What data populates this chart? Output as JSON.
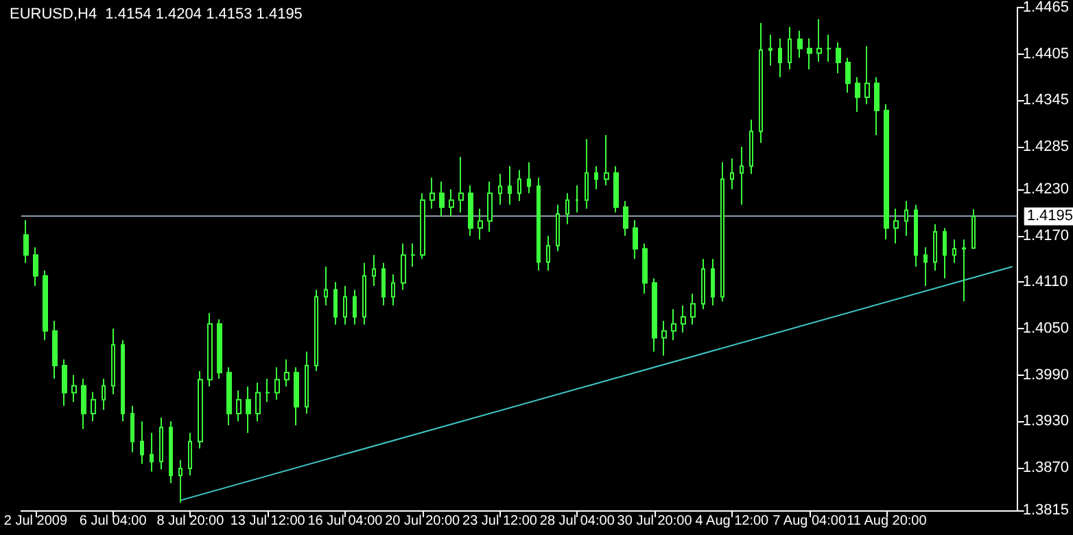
{
  "chart_data": {
    "type": "candlestick",
    "title": "EURUSD,H4  1.4154 1.4204 1.4153 1.4195",
    "color": "#3cff3c",
    "categories": [
      null,
      "2 Jul 2009",
      null,
      null,
      null,
      null,
      null,
      null,
      null,
      "6 Jul 04:00",
      null,
      null,
      null,
      null,
      null,
      null,
      null,
      "8 Jul 20:00",
      null,
      null,
      null,
      null,
      null,
      null,
      null,
      "13 Jul 12:00",
      null,
      null,
      null,
      null,
      null,
      null,
      null,
      "16 Jul 04:00",
      null,
      null,
      null,
      null,
      null,
      null,
      null,
      "20 Jul 20:00",
      null,
      null,
      null,
      null,
      null,
      null,
      null,
      "23 Jul 12:00",
      null,
      null,
      null,
      null,
      null,
      null,
      null,
      "28 Jul 04:00",
      null,
      null,
      null,
      null,
      null,
      null,
      null,
      "30 Jul 20:00",
      null,
      null,
      null,
      null,
      null,
      null,
      null,
      "4 Aug 12:00",
      null,
      null,
      null,
      null,
      null,
      null,
      null,
      "7 Aug 04:00",
      null,
      null,
      null,
      null,
      null,
      null,
      null,
      "11 Aug 20:00",
      null,
      null,
      null,
      null,
      null,
      null,
      null,
      null,
      null,
      null,
      null,
      null,
      null
    ],
    "ohlc": [
      [
        1.4171,
        1.419,
        1.4135,
        1.4145
      ],
      [
        1.4145,
        1.4155,
        1.4105,
        1.4118
      ],
      [
        1.4118,
        1.4125,
        1.4035,
        1.4047
      ],
      [
        1.4047,
        1.406,
        1.3985,
        1.4002
      ],
      [
        1.4002,
        1.401,
        1.395,
        1.3967
      ],
      [
        1.3967,
        1.399,
        1.3955,
        1.3976
      ],
      [
        1.3976,
        1.3985,
        1.392,
        1.394
      ],
      [
        1.394,
        1.3968,
        1.393,
        1.3958
      ],
      [
        1.3958,
        1.3985,
        1.3945,
        1.3976
      ],
      [
        1.3976,
        1.405,
        1.3965,
        1.4029
      ],
      [
        1.4029,
        1.4035,
        1.393,
        1.394
      ],
      [
        1.394,
        1.395,
        1.389,
        1.3904
      ],
      [
        1.3904,
        1.393,
        1.3875,
        1.3887
      ],
      [
        1.3887,
        1.3915,
        1.3865,
        1.3878
      ],
      [
        1.3878,
        1.3935,
        1.3868,
        1.3922
      ],
      [
        1.3922,
        1.393,
        1.385,
        1.386
      ],
      [
        1.386,
        1.388,
        1.3825,
        1.3869
      ],
      [
        1.3869,
        1.3915,
        1.386,
        1.3904
      ],
      [
        1.3904,
        1.3995,
        1.3895,
        1.3984
      ],
      [
        1.3984,
        1.407,
        1.3975,
        1.4056
      ],
      [
        1.4056,
        1.4062,
        1.3985,
        1.3993
      ],
      [
        1.3993,
        1.4,
        1.3925,
        1.394
      ],
      [
        1.394,
        1.397,
        1.393,
        1.3958
      ],
      [
        1.3958,
        1.3975,
        1.3915,
        1.394
      ],
      [
        1.394,
        1.398,
        1.393,
        1.3967
      ],
      [
        1.3967,
        1.3985,
        1.3955,
        1.3967
      ],
      [
        1.3967,
        1.4,
        1.3958,
        1.3984
      ],
      [
        1.3984,
        1.401,
        1.3975,
        1.3993
      ],
      [
        1.3993,
        1.4,
        1.3925,
        1.3949
      ],
      [
        1.3949,
        1.402,
        1.394,
        1.4002
      ],
      [
        1.4002,
        1.41,
        1.3995,
        1.4091
      ],
      [
        1.4091,
        1.413,
        1.408,
        1.41
      ],
      [
        1.41,
        1.411,
        1.4055,
        1.4065
      ],
      [
        1.4065,
        1.4105,
        1.4055,
        1.4091
      ],
      [
        1.4091,
        1.41,
        1.4055,
        1.4065
      ],
      [
        1.4065,
        1.4135,
        1.4055,
        1.4118
      ],
      [
        1.4118,
        1.4145,
        1.4105,
        1.4127
      ],
      [
        1.4127,
        1.4135,
        1.408,
        1.4091
      ],
      [
        1.4091,
        1.412,
        1.408,
        1.4109
      ],
      [
        1.4109,
        1.416,
        1.41,
        1.4145
      ],
      [
        1.4145,
        1.416,
        1.413,
        1.4145
      ],
      [
        1.4145,
        1.4225,
        1.414,
        1.4216
      ],
      [
        1.4216,
        1.4245,
        1.4205,
        1.4225
      ],
      [
        1.4225,
        1.424,
        1.4195,
        1.4207
      ],
      [
        1.4207,
        1.423,
        1.4195,
        1.4216
      ],
      [
        1.4216,
        1.4272,
        1.42,
        1.4225
      ],
      [
        1.4225,
        1.4235,
        1.417,
        1.418
      ],
      [
        1.418,
        1.4205,
        1.4165,
        1.4189
      ],
      [
        1.4189,
        1.424,
        1.4175,
        1.4225
      ],
      [
        1.4225,
        1.425,
        1.421,
        1.4234
      ],
      [
        1.4234,
        1.426,
        1.421,
        1.4225
      ],
      [
        1.4225,
        1.4255,
        1.4215,
        1.4243
      ],
      [
        1.4243,
        1.4265,
        1.4225,
        1.4234
      ],
      [
        1.4234,
        1.4245,
        1.4125,
        1.4136
      ],
      [
        1.4136,
        1.417,
        1.4125,
        1.4157
      ],
      [
        1.4157,
        1.421,
        1.415,
        1.4198
      ],
      [
        1.4198,
        1.4225,
        1.4185,
        1.4216
      ],
      [
        1.4216,
        1.4235,
        1.42,
        1.4216
      ],
      [
        1.4216,
        1.4295,
        1.4205,
        1.4251
      ],
      [
        1.4251,
        1.426,
        1.423,
        1.4243
      ],
      [
        1.4243,
        1.43,
        1.4235,
        1.4251
      ],
      [
        1.4251,
        1.426,
        1.42,
        1.4207
      ],
      [
        1.4207,
        1.4215,
        1.417,
        1.418
      ],
      [
        1.418,
        1.419,
        1.414,
        1.4153
      ],
      [
        1.4153,
        1.416,
        1.4095,
        1.4109
      ],
      [
        1.4109,
        1.4115,
        1.402,
        1.4038
      ],
      [
        1.4038,
        1.406,
        1.4015,
        1.4047
      ],
      [
        1.4047,
        1.4075,
        1.4035,
        1.4056
      ],
      [
        1.4056,
        1.408,
        1.4045,
        1.4065
      ],
      [
        1.4065,
        1.4095,
        1.4055,
        1.4082
      ],
      [
        1.4082,
        1.414,
        1.4075,
        1.4127
      ],
      [
        1.4127,
        1.414,
        1.408,
        1.4091
      ],
      [
        1.4091,
        1.4265,
        1.4085,
        1.4243
      ],
      [
        1.4243,
        1.427,
        1.423,
        1.4251
      ],
      [
        1.4251,
        1.4285,
        1.421,
        1.426
      ],
      [
        1.426,
        1.432,
        1.425,
        1.4305
      ],
      [
        1.4305,
        1.4445,
        1.429,
        1.441
      ],
      [
        1.441,
        1.443,
        1.439,
        1.4412
      ],
      [
        1.4412,
        1.4425,
        1.4375,
        1.4394
      ],
      [
        1.4394,
        1.444,
        1.4385,
        1.4424
      ],
      [
        1.4424,
        1.4435,
        1.44,
        1.4412
      ],
      [
        1.4412,
        1.4425,
        1.4385,
        1.4406
      ],
      [
        1.4406,
        1.445,
        1.4395,
        1.4412
      ],
      [
        1.4412,
        1.443,
        1.4395,
        1.4412
      ],
      [
        1.4412,
        1.442,
        1.438,
        1.4394
      ],
      [
        1.4394,
        1.44,
        1.4355,
        1.4367
      ],
      [
        1.4367,
        1.4375,
        1.433,
        1.4349
      ],
      [
        1.4349,
        1.4415,
        1.434,
        1.4367
      ],
      [
        1.4367,
        1.4375,
        1.43,
        1.4332
      ],
      [
        1.4332,
        1.434,
        1.4165,
        1.418
      ],
      [
        1.418,
        1.4205,
        1.416,
        1.4189
      ],
      [
        1.4189,
        1.4215,
        1.417,
        1.4203
      ],
      [
        1.4203,
        1.421,
        1.413,
        1.4145
      ],
      [
        1.4145,
        1.4155,
        1.4105,
        1.4136
      ],
      [
        1.4136,
        1.4185,
        1.4125,
        1.4175
      ],
      [
        1.4175,
        1.418,
        1.4115,
        1.4145
      ],
      [
        1.4145,
        1.4165,
        1.4135,
        1.4153
      ],
      [
        1.4153,
        1.4165,
        1.4085,
        1.4154
      ],
      [
        1.4154,
        1.4204,
        1.4153,
        1.4195
      ],
      null,
      null,
      null,
      null
    ],
    "series": [
      {
        "type": "line",
        "color": "#40c8c8",
        "values": [
          null,
          null,
          null,
          null,
          null,
          null,
          null,
          null,
          null,
          null,
          null,
          null,
          null,
          null,
          null,
          null,
          1.3828,
          null,
          null,
          null,
          null,
          null,
          null,
          null,
          null,
          null,
          null,
          null,
          null,
          null,
          null,
          null,
          null,
          null,
          null,
          null,
          null,
          null,
          null,
          null,
          null,
          null,
          null,
          null,
          null,
          null,
          null,
          null,
          null,
          null,
          null,
          null,
          null,
          null,
          null,
          null,
          null,
          null,
          null,
          null,
          null,
          null,
          null,
          null,
          null,
          null,
          null,
          null,
          null,
          null,
          null,
          null,
          null,
          null,
          null,
          null,
          null,
          null,
          null,
          null,
          null,
          null,
          null,
          null,
          null,
          null,
          null,
          null,
          null,
          null,
          null,
          null,
          null,
          null,
          null,
          null,
          null,
          null,
          null,
          null,
          null,
          null,
          1.413
        ]
      }
    ],
    "ylim": [
      1.3815,
      1.4465
    ],
    "yticks": [
      {
        "value": 1.3815,
        "label": "1.3815"
      },
      {
        "value": 1.387,
        "label": "1.3870"
      },
      {
        "value": 1.393,
        "label": "1.3930"
      },
      {
        "value": 1.399,
        "label": "1.3990"
      },
      {
        "value": 1.405,
        "label": "1.4050"
      },
      {
        "value": 1.411,
        "label": "1.4110"
      },
      {
        "value": 1.417,
        "label": "1.4170"
      },
      {
        "value": 1.423,
        "label": "1.4230"
      },
      {
        "value": 1.4285,
        "label": "1.4285"
      },
      {
        "value": 1.4345,
        "label": "1.4345"
      },
      {
        "value": 1.4405,
        "label": "1.4405"
      },
      {
        "value": 1.4465,
        "label": "1.4465"
      }
    ],
    "ref_lines": [
      {
        "axis": "y",
        "value": 1.4195,
        "label": "1.4195",
        "color": "#8c9cac"
      }
    ]
  }
}
